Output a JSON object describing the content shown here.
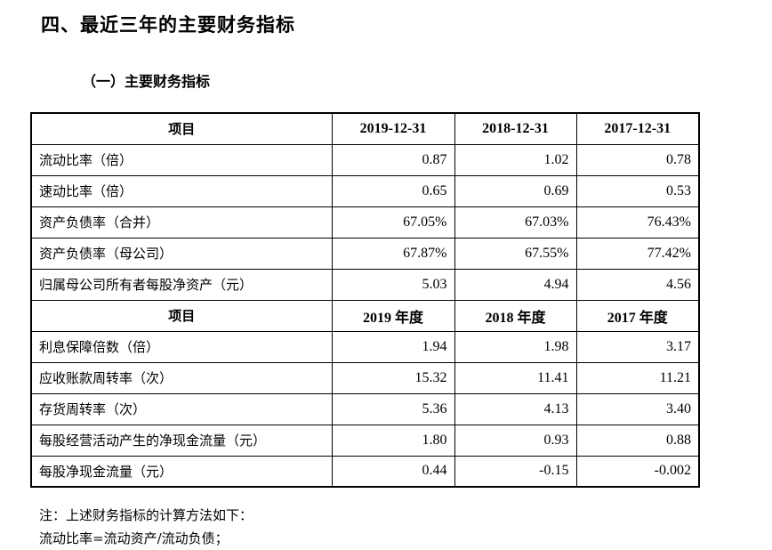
{
  "heading": "四、最近三年的主要财务指标",
  "subheading": "（一）主要财务指标",
  "table": {
    "header1": [
      "项目",
      "2019-12-31",
      "2018-12-31",
      "2017-12-31"
    ],
    "section1": [
      {
        "label": "流动比率（倍）",
        "v": [
          "0.87",
          "1.02",
          "0.78"
        ]
      },
      {
        "label": "速动比率（倍）",
        "v": [
          "0.65",
          "0.69",
          "0.53"
        ]
      },
      {
        "label": "资产负债率（合并）",
        "v": [
          "67.05%",
          "67.03%",
          "76.43%"
        ]
      },
      {
        "label": "资产负债率（母公司）",
        "v": [
          "67.87%",
          "67.55%",
          "77.42%"
        ]
      },
      {
        "label": "归属母公司所有者每股净资产（元）",
        "v": [
          "5.03",
          "4.94",
          "4.56"
        ]
      }
    ],
    "header2": [
      "项目",
      "2019 年度",
      "2018 年度",
      "2017 年度"
    ],
    "section2": [
      {
        "label": "利息保障倍数（倍）",
        "v": [
          "1.94",
          "1.98",
          "3.17"
        ]
      },
      {
        "label": "应收账款周转率（次）",
        "v": [
          "15.32",
          "11.41",
          "11.21"
        ]
      },
      {
        "label": "存货周转率（次）",
        "v": [
          "5.36",
          "4.13",
          "3.40"
        ]
      },
      {
        "label": "每股经营活动产生的净现金流量（元）",
        "v": [
          "1.80",
          "0.93",
          "0.88"
        ]
      },
      {
        "label": "每股净现金流量（元）",
        "v": [
          "0.44",
          "-0.15",
          "-0.002"
        ]
      }
    ]
  },
  "notes": [
    "注：上述财务指标的计算方法如下：",
    "流动比率=流动资产/流动负债；"
  ]
}
